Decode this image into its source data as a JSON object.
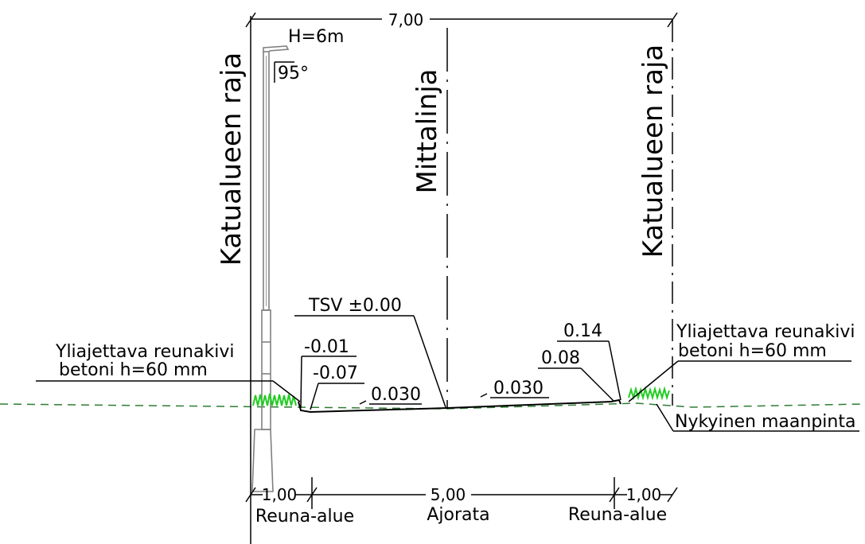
{
  "dimensions": {
    "total": "7,00",
    "left_edge": "1,00",
    "carriageway": "5,00",
    "right_edge": "1,00"
  },
  "pole": {
    "height": "H=6m",
    "angle": "95°"
  },
  "boundary_labels": {
    "left": "Katualueen raja",
    "right": "Katualueen raja"
  },
  "centerline_label": "Mittalinja",
  "elevations": {
    "tsv": "TSV ±0.00",
    "left_top": "-0.01",
    "left_bottom": "-0.07",
    "right_top": "0.14",
    "right_mid": "0.08"
  },
  "slopes": {
    "left": "0.030",
    "right": "0.030"
  },
  "curb_label": {
    "left_line1": "Yliajettava reunakivi",
    "left_line2": "betoni h=60 mm",
    "right_line1": "Yliajettava reunakivi",
    "right_line2": "betoni h=60 mm"
  },
  "ground_label": "Nykyinen maanpinta",
  "zones": {
    "left": "Reuna-alue",
    "middle": "Ajorata",
    "right": "Reuna-alue"
  },
  "colors": {
    "line": "#000000",
    "pole": "#808080",
    "grass": "#22cc22",
    "ground": "#2e7d32"
  }
}
